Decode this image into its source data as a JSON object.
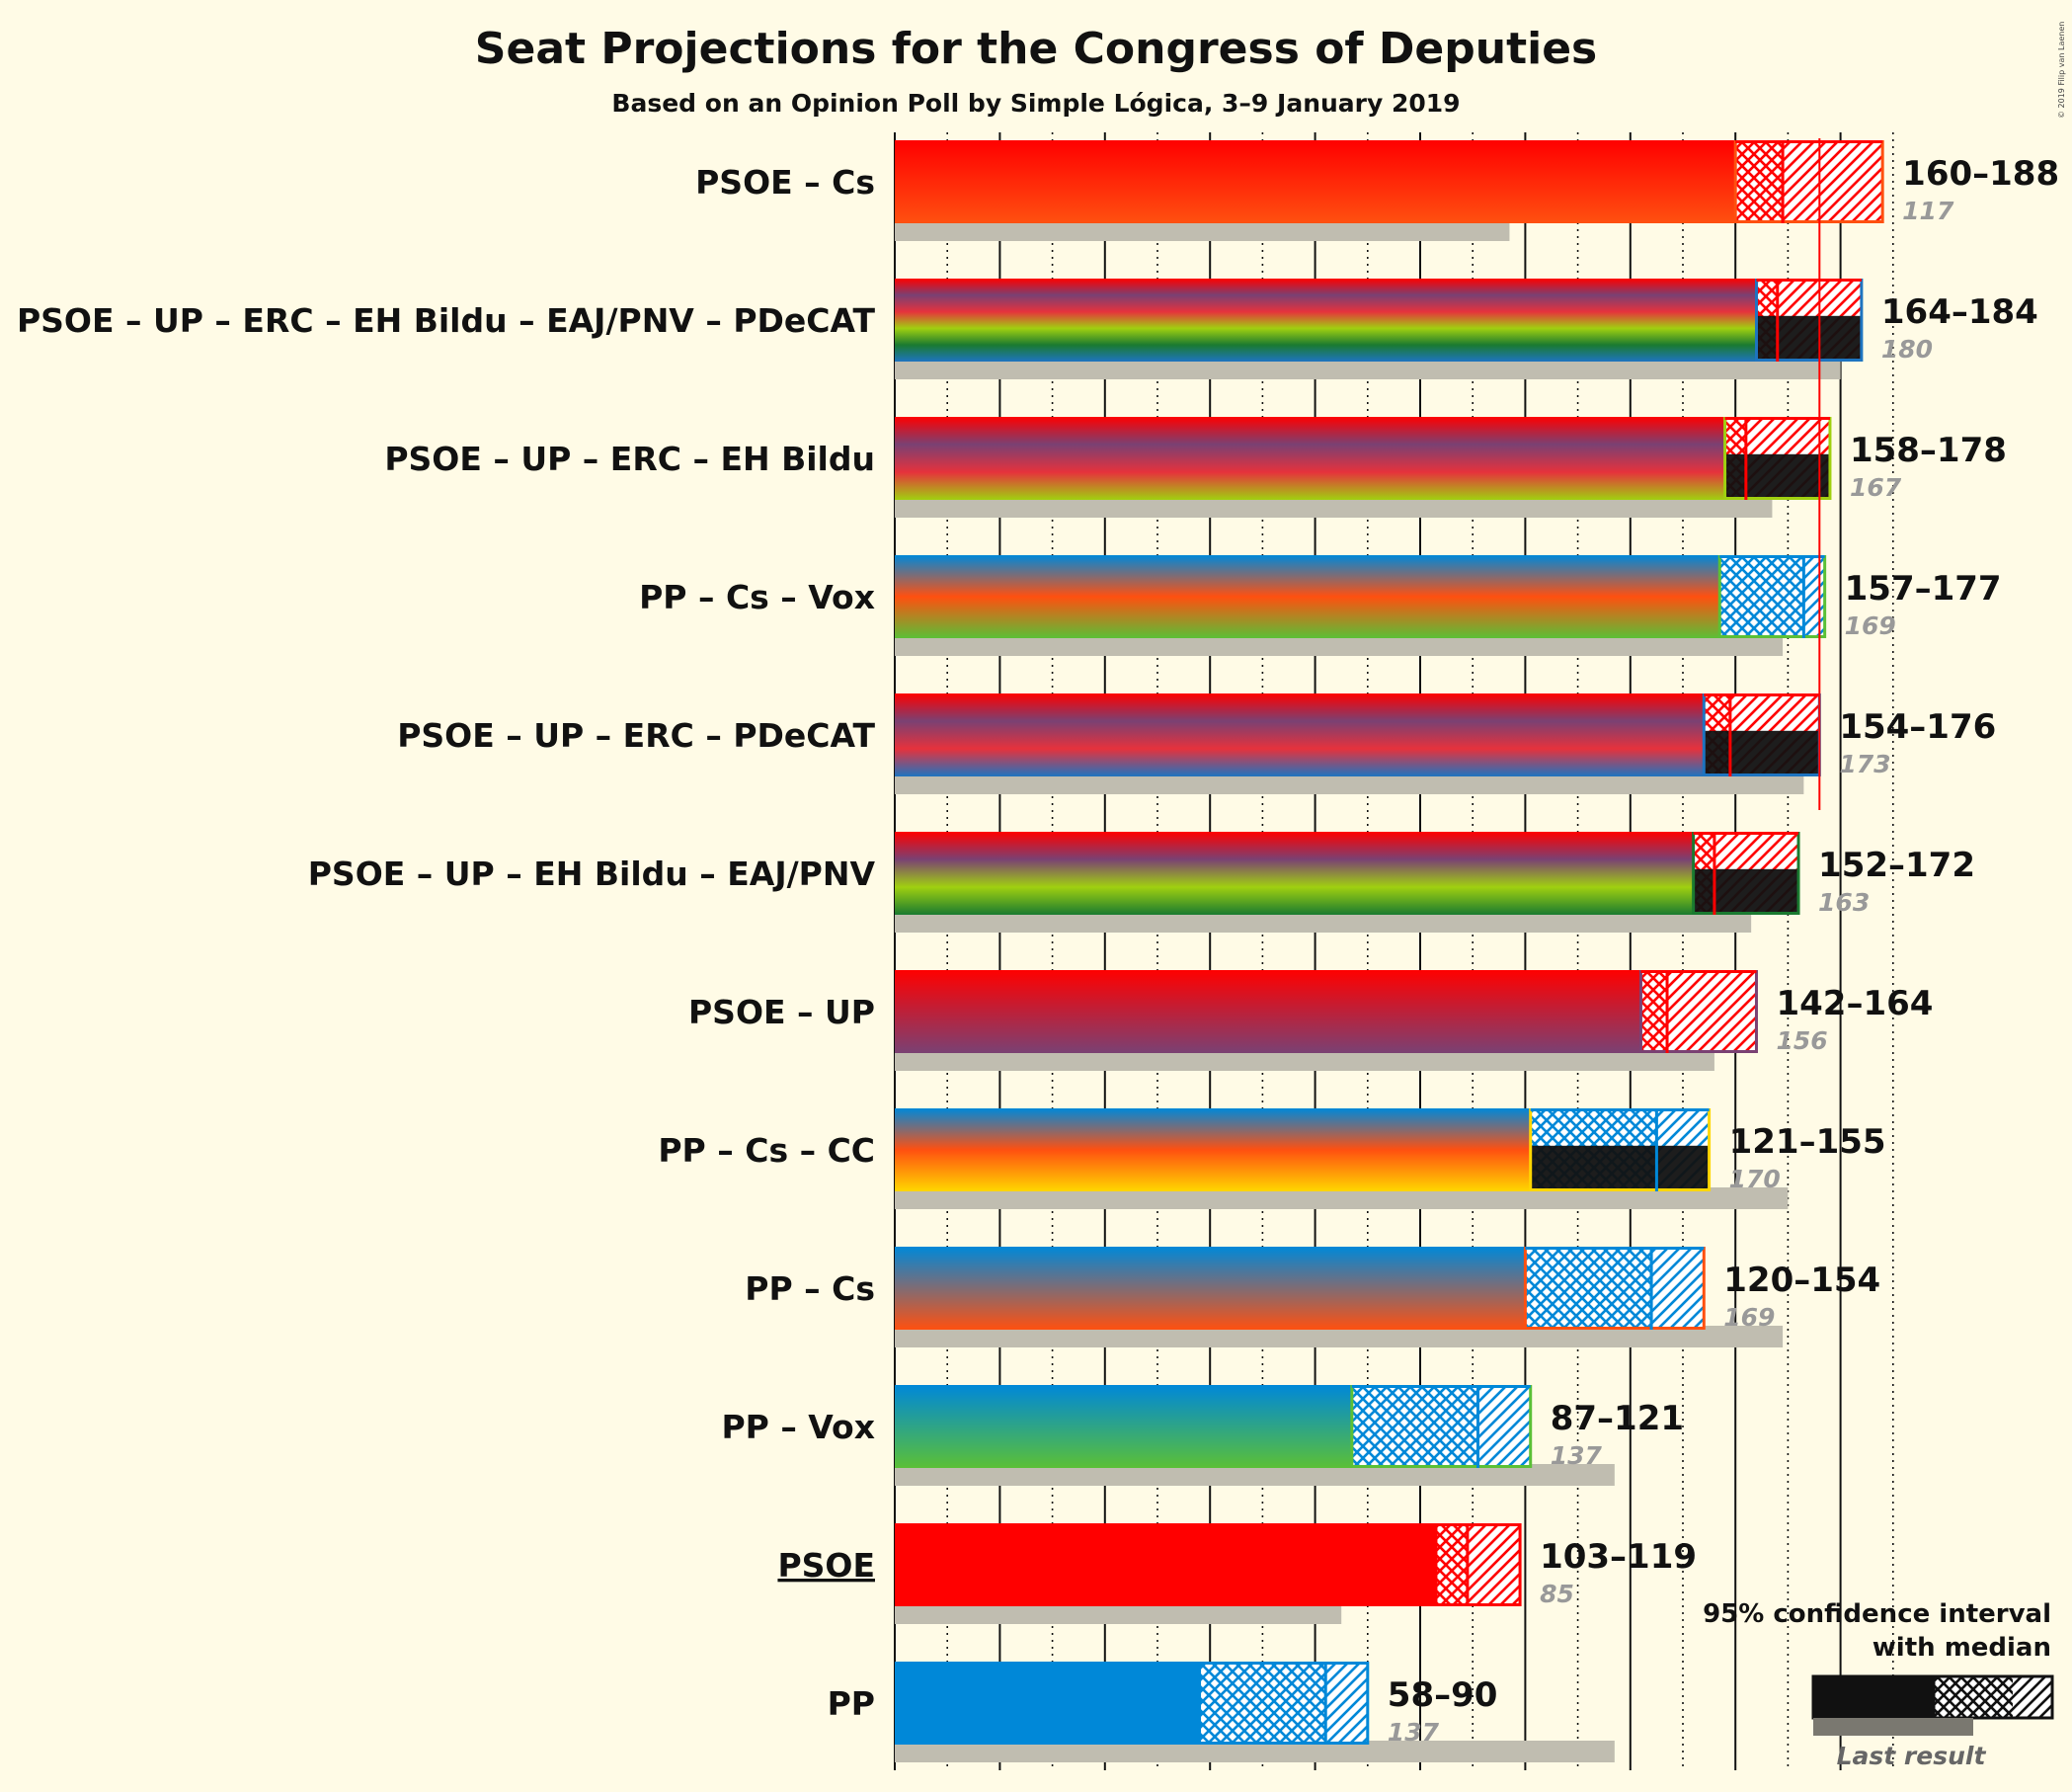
{
  "title": "Seat Projections for the Congress of Deputies",
  "subtitle": "Based on an Opinion Poll by Simple Lógica, 3–9 January 2019",
  "copyright": "© 2019 Filip van Laenen",
  "legend": {
    "ci_label_line1": "95% confidence interval",
    "ci_label_line2": "with median",
    "last_result_label": "Last result"
  },
  "colors": {
    "PSOE": "#FF0000",
    "UP": "#7A4173",
    "Cs": "#FF5010",
    "PP": "#0088D8",
    "Vox": "#5BC036",
    "ERC": "#E6323C",
    "EH Bildu": "#A0D010",
    "EAJ/PNV": "#1A7A30",
    "PDeCAT": "#1E74C0",
    "CC": "#FFD700",
    "majority_line": "#FF0000",
    "last_result_bar": "#C0BDB0",
    "background": "#FFFBE6"
  },
  "chart_data": {
    "type": "bar",
    "orientation": "horizontal",
    "x_unit": "seats",
    "xlim": [
      0,
      200
    ],
    "x_gridlines_major": [
      0,
      20,
      40,
      60,
      80,
      100,
      120,
      140,
      160,
      180
    ],
    "majority_threshold": 176,
    "rows": [
      {
        "label": "PSOE – Cs",
        "parties": [
          "PSOE",
          "Cs"
        ],
        "low": 160,
        "median": 169,
        "high": 188,
        "range_text": "160–188",
        "last": 117,
        "last_text": "117",
        "underlined": false,
        "black_solid": false
      },
      {
        "label": "PSOE – UP – ERC – EH Bildu – EAJ/PNV – PDeCAT",
        "parties": [
          "PSOE",
          "UP",
          "ERC",
          "EH Bildu",
          "EAJ/PNV",
          "PDeCAT"
        ],
        "low": 164,
        "median": 168,
        "high": 184,
        "range_text": "164–184",
        "last": 180,
        "last_text": "180",
        "underlined": false,
        "black_solid": true
      },
      {
        "label": "PSOE – UP – ERC – EH Bildu",
        "parties": [
          "PSOE",
          "UP",
          "ERC",
          "EH Bildu"
        ],
        "low": 158,
        "median": 162,
        "high": 178,
        "range_text": "158–178",
        "last": 167,
        "last_text": "167",
        "underlined": false,
        "black_solid": true
      },
      {
        "label": "PP – Cs – Vox",
        "parties": [
          "PP",
          "Cs",
          "Vox"
        ],
        "low": 157,
        "median": 173,
        "high": 177,
        "range_text": "157–177",
        "last": 169,
        "last_text": "169",
        "underlined": false,
        "black_solid": false
      },
      {
        "label": "PSOE – UP – ERC – PDeCAT",
        "parties": [
          "PSOE",
          "UP",
          "ERC",
          "PDeCAT"
        ],
        "low": 154,
        "median": 159,
        "high": 176,
        "range_text": "154–176",
        "last": 173,
        "last_text": "173",
        "underlined": false,
        "black_solid": true
      },
      {
        "label": "PSOE – UP – EH Bildu – EAJ/PNV",
        "parties": [
          "PSOE",
          "UP",
          "EH Bildu",
          "EAJ/PNV"
        ],
        "low": 152,
        "median": 156,
        "high": 172,
        "range_text": "152–172",
        "last": 163,
        "last_text": "163",
        "underlined": false,
        "black_solid": true
      },
      {
        "label": "PSOE – UP",
        "parties": [
          "PSOE",
          "UP"
        ],
        "low": 142,
        "median": 147,
        "high": 164,
        "range_text": "142–164",
        "last": 156,
        "last_text": "156",
        "underlined": false,
        "black_solid": false
      },
      {
        "label": "PP – Cs – CC",
        "parties": [
          "PP",
          "Cs",
          "CC"
        ],
        "low": 121,
        "median": 145,
        "high": 155,
        "range_text": "121–155",
        "last": 170,
        "last_text": "170",
        "underlined": false,
        "black_solid": true
      },
      {
        "label": "PP – Cs",
        "parties": [
          "PP",
          "Cs"
        ],
        "low": 120,
        "median": 144,
        "high": 154,
        "range_text": "120–154",
        "last": 169,
        "last_text": "169",
        "underlined": false,
        "black_solid": false
      },
      {
        "label": "PP – Vox",
        "parties": [
          "PP",
          "Vox"
        ],
        "low": 87,
        "median": 111,
        "high": 121,
        "range_text": "87–121",
        "last": 137,
        "last_text": "137",
        "underlined": false,
        "black_solid": false
      },
      {
        "label": "PSOE",
        "parties": [
          "PSOE"
        ],
        "low": 103,
        "median": 109,
        "high": 119,
        "range_text": "103–119",
        "last": 85,
        "last_text": "85",
        "underlined": true,
        "black_solid": false
      },
      {
        "label": "PP",
        "parties": [
          "PP"
        ],
        "low": 58,
        "median": 82,
        "high": 90,
        "range_text": "58–90",
        "last": 137,
        "last_text": "137",
        "underlined": false,
        "black_solid": false
      }
    ]
  }
}
